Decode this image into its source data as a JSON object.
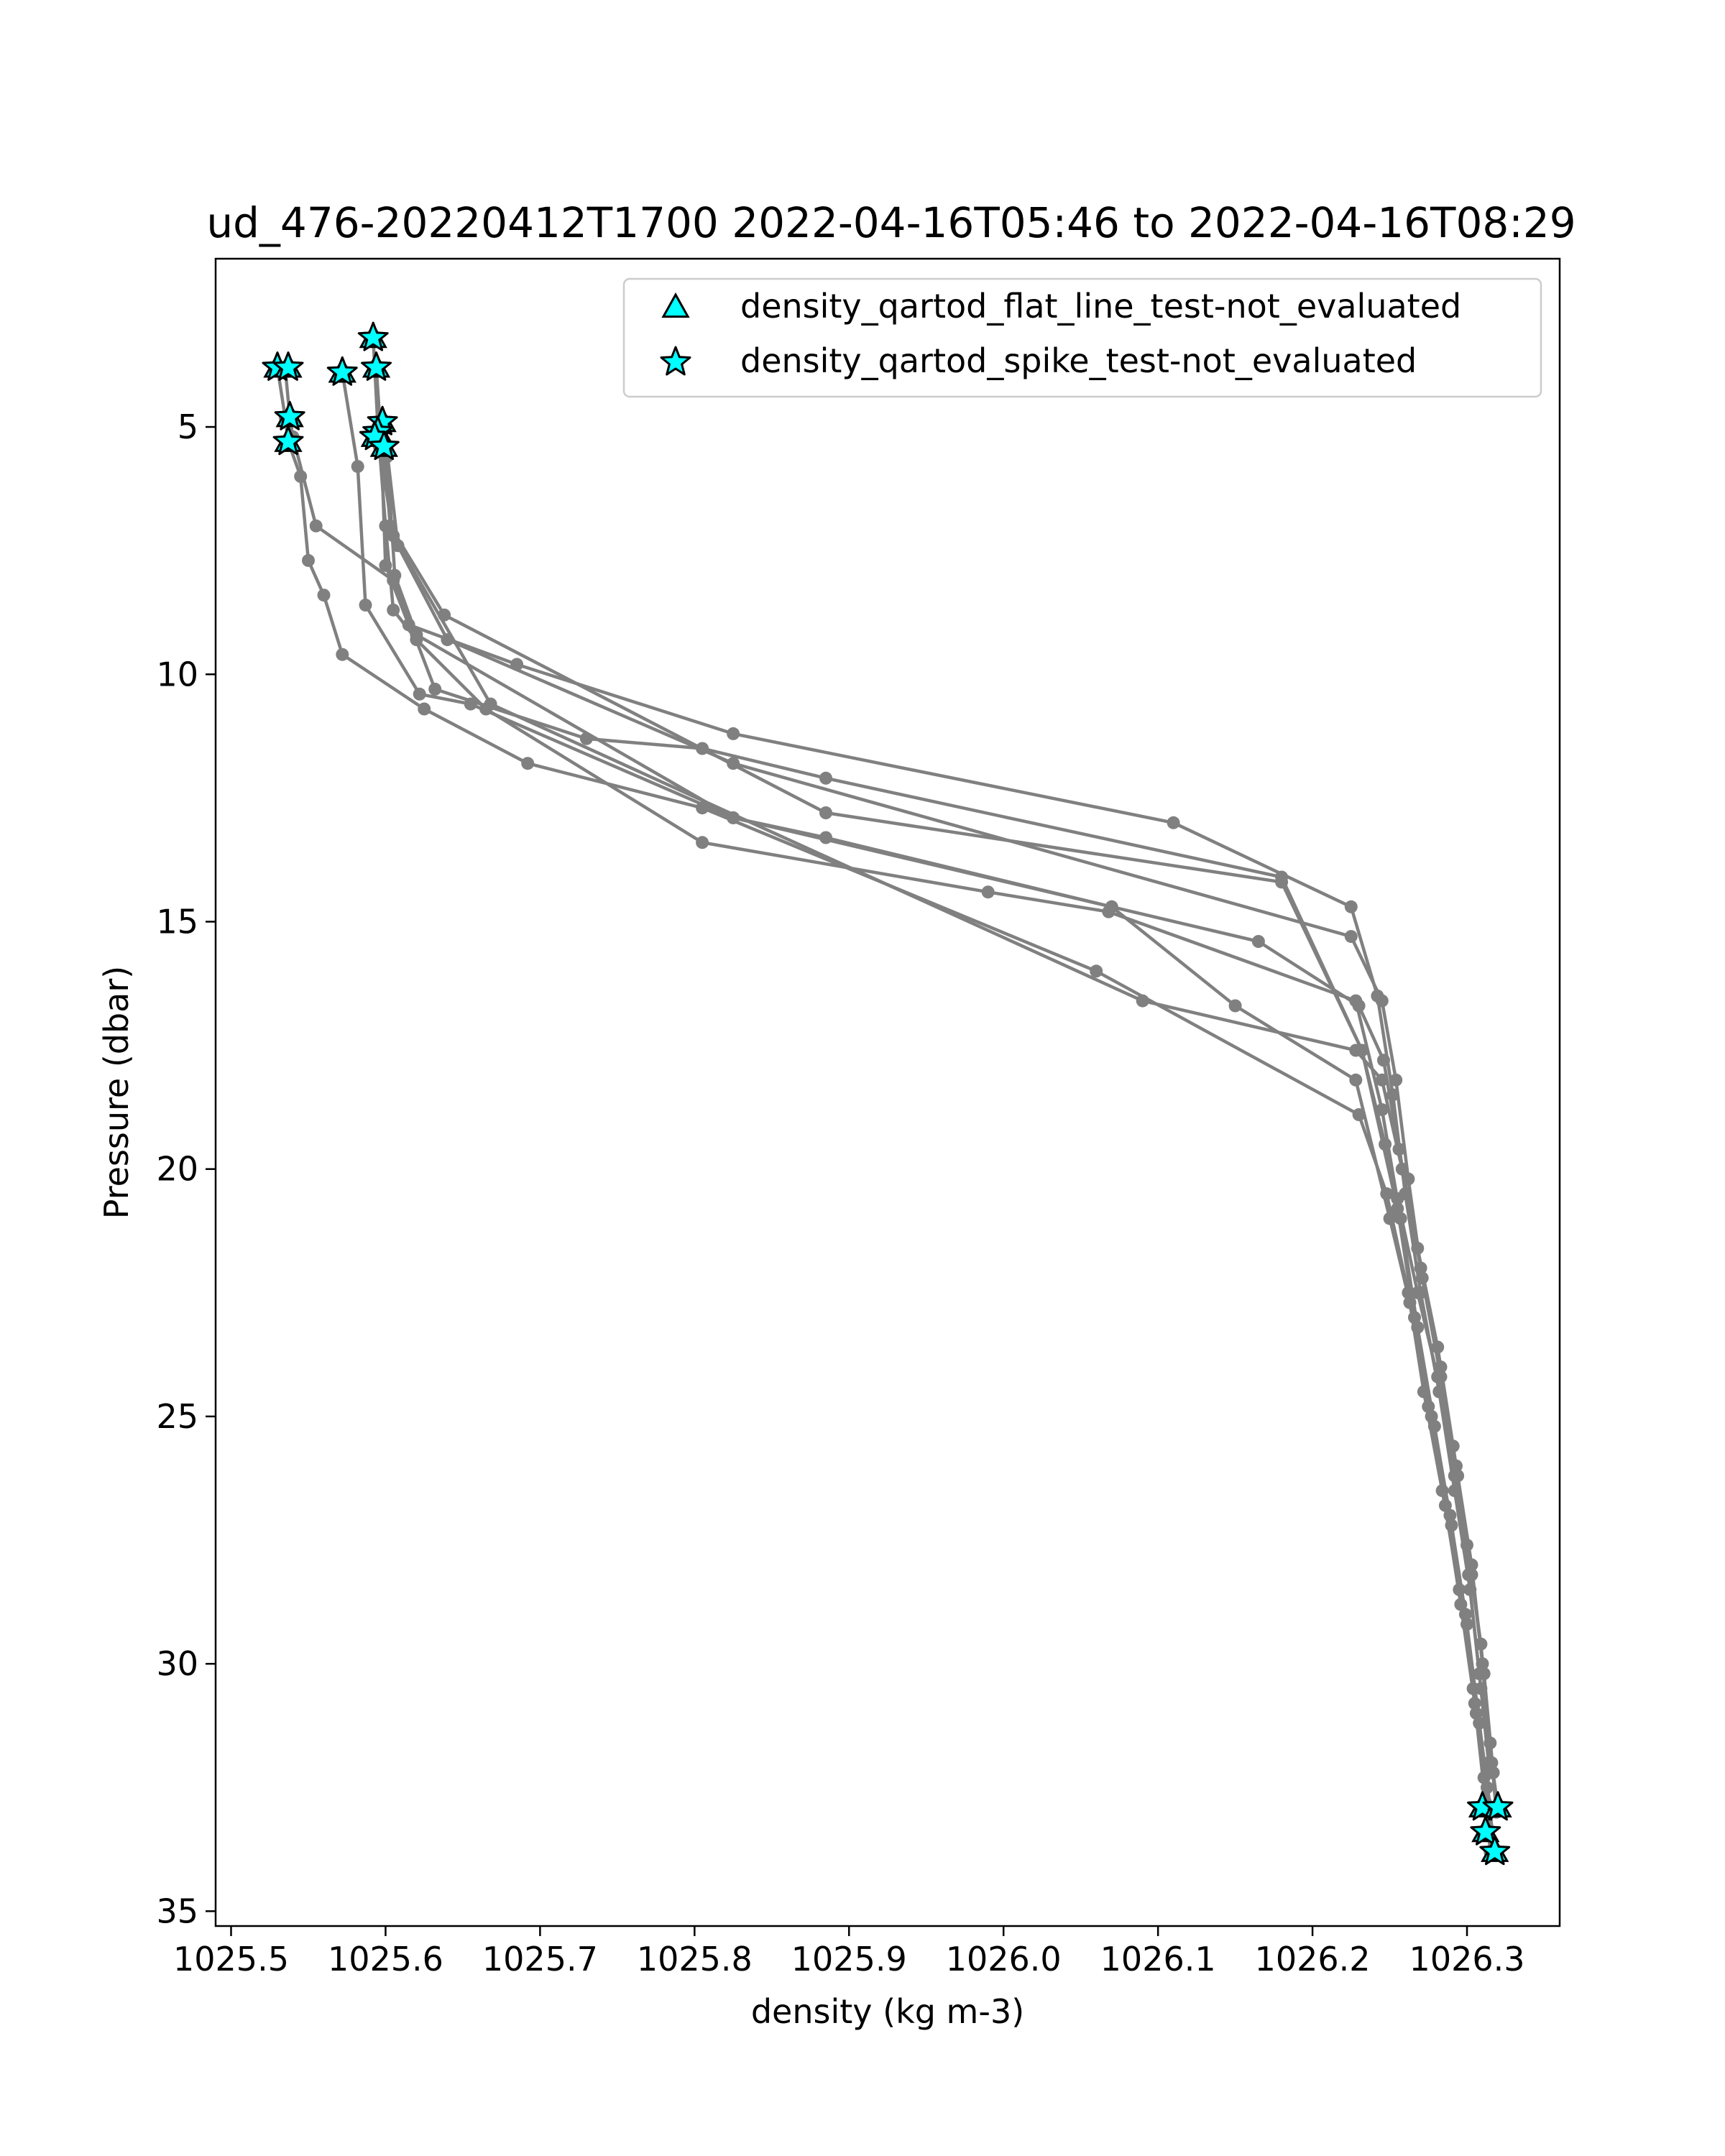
{
  "chart_data": {
    "type": "line",
    "title": "ud_476-20220412T1700 2022-04-16T05:46 to 2022-04-16T08:29",
    "xlabel": "density (kg m-3)",
    "ylabel": "Pressure (dbar)",
    "xlim": [
      1025.49,
      1026.36
    ],
    "ylim": [
      35.3,
      1.6
    ],
    "y_inverted": true,
    "grid": false,
    "legend_position": "top-right",
    "x_ticks": [
      "1025.5",
      "1025.6",
      "1025.7",
      "1025.8",
      "1025.9",
      "1026.0",
      "1026.1",
      "1026.2",
      "1026.3"
    ],
    "x_tick_values": [
      1025.5,
      1025.6,
      1025.7,
      1025.8,
      1025.9,
      1026.0,
      1026.1,
      1026.2,
      1026.3
    ],
    "y_ticks": [
      "5",
      "10",
      "15",
      "20",
      "25",
      "30",
      "35"
    ],
    "y_tick_values": [
      5,
      10,
      15,
      20,
      25,
      30,
      35
    ],
    "legend": [
      {
        "label": "density_qartod_flat_line_test-not_evaluated",
        "marker": "triangle"
      },
      {
        "label": "density_qartod_spike_test-not_evaluated",
        "marker": "star"
      }
    ],
    "colors": {
      "profile_line": "#808080",
      "flag_fill": "#00ffff",
      "flag_edge": "#000000"
    },
    "series": [
      {
        "values": [
          [
            1025.53,
            3.8
          ],
          [
            1025.535,
            4.8
          ],
          [
            1025.537,
            5.3
          ],
          [
            1025.545,
            6.0
          ],
          [
            1025.55,
            7.7
          ],
          [
            1025.56,
            8.4
          ],
          [
            1025.572,
            9.6
          ],
          [
            1025.625,
            10.7
          ],
          [
            1025.692,
            11.8
          ],
          [
            1025.805,
            12.7
          ],
          [
            1026.06,
            16.0
          ],
          [
            1026.23,
            18.9
          ],
          [
            1026.248,
            20.5
          ],
          [
            1026.262,
            22.5
          ],
          [
            1026.272,
            24.5
          ],
          [
            1026.284,
            26.5
          ],
          [
            1026.295,
            28.5
          ],
          [
            1026.304,
            30.5
          ],
          [
            1026.311,
            32.3
          ],
          [
            1026.315,
            33.8
          ]
        ]
      },
      {
        "values": [
          [
            1025.535,
            3.8
          ],
          [
            1025.538,
            4.8
          ],
          [
            1025.54,
            5.2
          ],
          [
            1025.555,
            7.0
          ],
          [
            1025.605,
            8.1
          ],
          [
            1025.632,
            10.3
          ],
          [
            1025.73,
            11.3
          ],
          [
            1025.805,
            11.5
          ],
          [
            1025.885,
            12.1
          ],
          [
            1026.18,
            14.1
          ],
          [
            1026.232,
            17.6
          ],
          [
            1026.255,
            20.8
          ],
          [
            1026.266,
            23.0
          ],
          [
            1026.277,
            25.0
          ],
          [
            1026.289,
            27.0
          ],
          [
            1026.299,
            29.0
          ],
          [
            1026.306,
            31.0
          ],
          [
            1026.313,
            32.5
          ],
          [
            1026.318,
            33.8
          ]
        ]
      },
      {
        "values": [
          [
            1025.572,
            3.9
          ],
          [
            1025.582,
            5.8
          ],
          [
            1025.587,
            8.6
          ],
          [
            1025.622,
            10.4
          ],
          [
            1025.655,
            10.6
          ],
          [
            1025.825,
            12.9
          ],
          [
            1025.885,
            13.3
          ],
          [
            1026.07,
            14.7
          ],
          [
            1026.15,
            16.7
          ],
          [
            1026.228,
            18.2
          ],
          [
            1026.25,
            21.0
          ],
          [
            1026.263,
            22.7
          ],
          [
            1026.275,
            24.8
          ],
          [
            1026.286,
            26.8
          ],
          [
            1026.296,
            28.8
          ],
          [
            1026.305,
            30.8
          ],
          [
            1026.312,
            32.8
          ],
          [
            1026.317,
            33.8
          ]
        ]
      },
      {
        "values": [
          [
            1025.592,
            3.2
          ],
          [
            1025.595,
            5.0
          ],
          [
            1025.6,
            7.0
          ],
          [
            1025.605,
            8.7
          ],
          [
            1025.62,
            9.3
          ],
          [
            1025.665,
            10.7
          ],
          [
            1025.805,
            13.4
          ],
          [
            1025.99,
            14.4
          ],
          [
            1026.068,
            14.8
          ],
          [
            1026.228,
            16.6
          ],
          [
            1026.245,
            18.8
          ],
          [
            1026.257,
            21.0
          ],
          [
            1026.268,
            23.2
          ],
          [
            1026.279,
            25.2
          ],
          [
            1026.29,
            27.2
          ],
          [
            1026.3,
            29.2
          ],
          [
            1026.308,
            31.2
          ],
          [
            1026.315,
            32.9
          ]
        ]
      },
      {
        "values": [
          [
            1025.594,
            3.8
          ],
          [
            1025.597,
            5.2
          ],
          [
            1025.6,
            7.8
          ],
          [
            1025.615,
            9.0
          ],
          [
            1025.685,
            9.8
          ],
          [
            1025.825,
            11.2
          ],
          [
            1026.11,
            13.0
          ],
          [
            1026.225,
            14.7
          ],
          [
            1026.242,
            16.5
          ],
          [
            1026.252,
            18.5
          ],
          [
            1026.26,
            20.5
          ],
          [
            1026.27,
            22.5
          ],
          [
            1026.282,
            24.5
          ],
          [
            1026.292,
            26.5
          ],
          [
            1026.302,
            28.5
          ],
          [
            1026.309,
            30.5
          ],
          [
            1026.316,
            32.0
          ],
          [
            1026.32,
            32.9
          ]
        ]
      },
      {
        "values": [
          [
            1025.598,
            4.9
          ],
          [
            1025.599,
            5.5
          ],
          [
            1025.603,
            7.0
          ],
          [
            1025.638,
            8.8
          ],
          [
            1025.885,
            12.8
          ],
          [
            1026.18,
            14.2
          ],
          [
            1026.232,
            17.6
          ],
          [
            1026.247,
            19.5
          ],
          [
            1026.255,
            20.6
          ],
          [
            1026.268,
            22.5
          ],
          [
            1026.281,
            24.2
          ],
          [
            1026.292,
            26.2
          ],
          [
            1026.301,
            28.2
          ],
          [
            1026.308,
            30.2
          ],
          [
            1026.314,
            32.0
          ]
        ]
      },
      {
        "values": [
          [
            1025.593,
            5.2
          ],
          [
            1025.596,
            5.4
          ],
          [
            1025.605,
            7.2
          ],
          [
            1025.668,
            10.6
          ],
          [
            1026.09,
            16.6
          ],
          [
            1026.228,
            17.6
          ],
          [
            1026.245,
            18.2
          ],
          [
            1026.258,
            20.0
          ],
          [
            1026.27,
            22.0
          ],
          [
            1026.283,
            24.0
          ],
          [
            1026.293,
            26.0
          ],
          [
            1026.303,
            28.0
          ],
          [
            1026.31,
            30.0
          ],
          [
            1026.316,
            32.2
          ]
        ]
      },
      {
        "values": [
          [
            1025.596,
            5.1
          ],
          [
            1025.601,
            5.6
          ],
          [
            1025.606,
            8.0
          ],
          [
            1025.62,
            9.2
          ],
          [
            1025.825,
            12.9
          ],
          [
            1026.07,
            14.7
          ],
          [
            1026.165,
            15.4
          ],
          [
            1026.23,
            16.7
          ],
          [
            1026.246,
            17.8
          ],
          [
            1026.256,
            19.6
          ],
          [
            1026.268,
            21.6
          ],
          [
            1026.281,
            23.6
          ],
          [
            1026.291,
            25.6
          ],
          [
            1026.3,
            27.6
          ],
          [
            1026.309,
            29.6
          ],
          [
            1026.315,
            31.6
          ],
          [
            1026.319,
            33.0
          ]
        ]
      },
      {
        "values": [
          [
            1025.599,
            5.3
          ],
          [
            1025.601,
            5.5
          ],
          [
            1025.608,
            7.4
          ],
          [
            1025.64,
            9.3
          ],
          [
            1025.825,
            11.8
          ],
          [
            1026.225,
            15.3
          ],
          [
            1026.245,
            16.6
          ],
          [
            1026.254,
            18.2
          ],
          [
            1026.262,
            20.2
          ],
          [
            1026.271,
            22.2
          ],
          [
            1026.283,
            24.2
          ],
          [
            1026.294,
            26.2
          ],
          [
            1026.303,
            28.2
          ],
          [
            1026.311,
            30.2
          ],
          [
            1026.317,
            32.2
          ]
        ]
      }
    ],
    "flagged_points": [
      [
        1025.53,
        3.8
      ],
      [
        1025.537,
        3.8
      ],
      [
        1025.538,
        4.8
      ],
      [
        1025.537,
        5.3
      ],
      [
        1025.572,
        3.9
      ],
      [
        1025.592,
        3.2
      ],
      [
        1025.594,
        3.8
      ],
      [
        1025.598,
        4.9
      ],
      [
        1025.595,
        5.1
      ],
      [
        1025.593,
        5.2
      ],
      [
        1025.599,
        5.4
      ],
      [
        1026.31,
        32.9
      ],
      [
        1026.32,
        32.9
      ],
      [
        1026.312,
        33.4
      ],
      [
        1026.318,
        33.8
      ]
    ]
  }
}
